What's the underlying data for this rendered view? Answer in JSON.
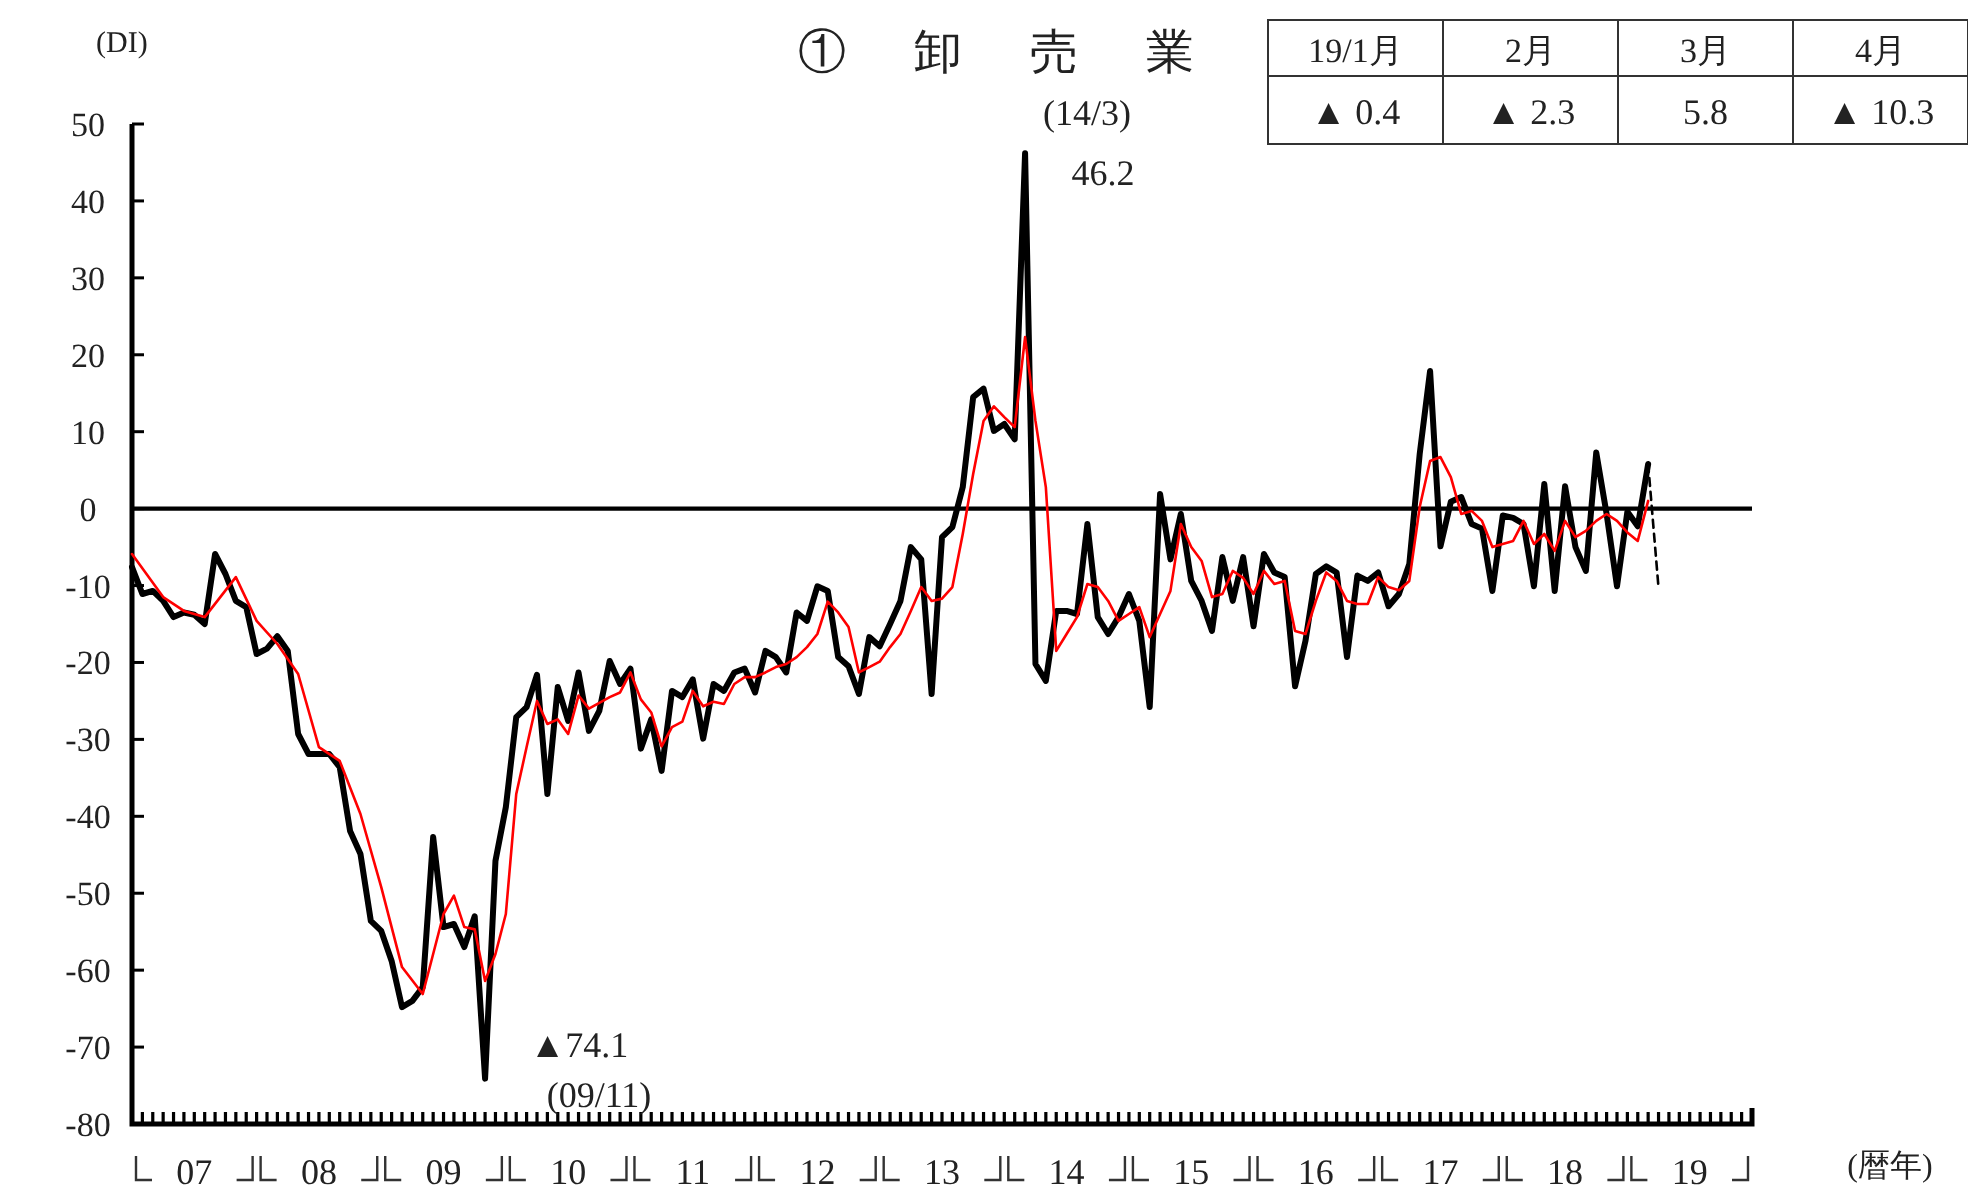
{
  "chart_data": [
    {
      "type": "line",
      "title": "① 卸 売 業",
      "ylabel": "(DI)",
      "xlabel": "(暦年)",
      "xlim": [
        "2007-01",
        "2020-01"
      ],
      "xticks": [
        {
          "value": "2007-07",
          "label": "07"
        },
        {
          "value": "2008-07",
          "label": "08"
        },
        {
          "value": "2009-07",
          "label": "09"
        },
        {
          "value": "2010-07",
          "label": "10"
        },
        {
          "value": "2011-07",
          "label": "11"
        },
        {
          "value": "2012-07",
          "label": "12"
        },
        {
          "value": "2013-07",
          "label": "13"
        },
        {
          "value": "2014-07",
          "label": "14"
        },
        {
          "value": "2015-07",
          "label": "15"
        },
        {
          "value": "2016-07",
          "label": "16"
        },
        {
          "value": "2017-07",
          "label": "17"
        },
        {
          "value": "2018-07",
          "label": "18"
        },
        {
          "value": "2019-07",
          "label": "19"
        }
      ],
      "ylim": [
        -80,
        50
      ],
      "yticks": [
        -80,
        -70,
        -60,
        -50,
        -40,
        -30,
        -20,
        -10,
        0,
        10,
        20,
        30,
        40,
        50
      ],
      "grid": false,
      "marker": "none",
      "ref_lines": [
        {
          "axis": "y",
          "value": 0,
          "color": "#000000"
        }
      ],
      "annotations": [
        {
          "text": "(14/3)\n46.2",
          "x": "2014-03",
          "y": 46.2
        },
        {
          "text": "▲74.1\n(09/11)",
          "x": "2009-11",
          "y": -74.1
        }
      ],
      "series": [
        {
          "color": "#000000",
          "line_style": "solid",
          "x": [
            "2007-01",
            "2007-02",
            "2007-03",
            "2007-04",
            "2007-05",
            "2007-06",
            "2007-07",
            "2007-08",
            "2007-09",
            "2007-10",
            "2007-11",
            "2007-12",
            "2008-01",
            "2008-02",
            "2008-03",
            "2008-04",
            "2008-05",
            "2008-06",
            "2008-07",
            "2008-08",
            "2008-09",
            "2008-10",
            "2008-11",
            "2008-12",
            "2009-01",
            "2009-02",
            "2009-03",
            "2009-04",
            "2009-05",
            "2009-06",
            "2009-07",
            "2009-08",
            "2009-09",
            "2009-10",
            "2009-11",
            "2009-12",
            "2010-01",
            "2010-02",
            "2010-03",
            "2010-04",
            "2010-05",
            "2010-06",
            "2010-07",
            "2010-08",
            "2010-09",
            "2010-10",
            "2010-11",
            "2010-12",
            "2011-01",
            "2011-02",
            "2011-03",
            "2011-04",
            "2011-05",
            "2011-06",
            "2011-07",
            "2011-08",
            "2011-09",
            "2011-10",
            "2011-11",
            "2011-12",
            "2012-01",
            "2012-02",
            "2012-03",
            "2012-04",
            "2012-05",
            "2012-06",
            "2012-07",
            "2012-08",
            "2012-09",
            "2012-10",
            "2012-11",
            "2012-12",
            "2013-01",
            "2013-02",
            "2013-03",
            "2013-04",
            "2013-05",
            "2013-06",
            "2013-07",
            "2013-08",
            "2013-09",
            "2013-10",
            "2013-11",
            "2013-12",
            "2014-01",
            "2014-02",
            "2014-03",
            "2014-04",
            "2014-05",
            "2014-06",
            "2014-07",
            "2014-08",
            "2014-09",
            "2014-10",
            "2014-11",
            "2014-12",
            "2015-01",
            "2015-02",
            "2015-03",
            "2015-04",
            "2015-05",
            "2015-06",
            "2015-07",
            "2015-08",
            "2015-09",
            "2015-10",
            "2015-11",
            "2015-12",
            "2016-01",
            "2016-02",
            "2016-03",
            "2016-04",
            "2016-05",
            "2016-06",
            "2016-07",
            "2016-08",
            "2016-09",
            "2016-10",
            "2016-11",
            "2016-12",
            "2017-01",
            "2017-02",
            "2017-03",
            "2017-04",
            "2017-05",
            "2017-06",
            "2017-07",
            "2017-08",
            "2017-09",
            "2017-10",
            "2017-11",
            "2017-12",
            "2018-01",
            "2018-02",
            "2018-03",
            "2018-04",
            "2018-05",
            "2018-06",
            "2018-07",
            "2018-08",
            "2018-09",
            "2018-10",
            "2018-11",
            "2018-12",
            "2019-01",
            "2019-02",
            "2019-03"
          ],
          "values": [
            -7.6,
            -11.1,
            -10.7,
            -12,
            -14.1,
            -13.5,
            -13.8,
            -15,
            -5.9,
            -8.5,
            -12,
            -12.8,
            -18.9,
            -18.2,
            -16.6,
            -18.5,
            -29.3,
            -31.9,
            -31.9,
            -31.9,
            -33.6,
            -41.9,
            -44.9,
            -53.6,
            -54.9,
            -58.8,
            -64.8,
            -64,
            -62.2,
            -42.7,
            -54.4,
            -54,
            -57,
            -53,
            -74.1,
            -45.8,
            -38.8,
            -27.1,
            -25.8,
            -21.6,
            -37.1,
            -23.2,
            -27.6,
            -21.3,
            -28.9,
            -26.3,
            -19.8,
            -22.8,
            -20.8,
            -31.2,
            -27.4,
            -34.1,
            -23.7,
            -24.5,
            -22.2,
            -29.9,
            -22.8,
            -23.7,
            -21.3,
            -20.8,
            -23.9,
            -18.5,
            -19.3,
            -21.3,
            -13.5,
            -14.6,
            -10.1,
            -10.7,
            -19.3,
            -20.5,
            -24.1,
            -16.7,
            -17.9,
            -15,
            -12,
            -5,
            -6.6,
            -24.1,
            -3.7,
            -2.4,
            2.8,
            14.5,
            15.6,
            10.1,
            11,
            9,
            46.2,
            -20.2,
            -22.4,
            -13.3,
            -13.3,
            -13.7,
            -2,
            -14.1,
            -16.3,
            -14.1,
            -11.1,
            -14.6,
            -25.8,
            1.9,
            -6.6,
            -0.7,
            -9.4,
            -12,
            -15.9,
            -6.3,
            -12,
            -6.3,
            -15.3,
            -5.9,
            -8.3,
            -8.9,
            -23.1,
            -17.2,
            -8.5,
            -7.5,
            -8.3,
            -19.3,
            -8.7,
            -9.4,
            -8.3,
            -12.7,
            -11.1,
            -7.2,
            7.1,
            17.9,
            -4.9,
            0.9,
            1.5,
            -2,
            -2.6,
            -10.7,
            -0.9,
            -1.2,
            -2,
            -10.1,
            3.2,
            -10.7,
            2.9,
            -5,
            -8.1,
            7.3,
            -0.7,
            -10.1,
            -0.4,
            -2.3,
            5.8
          ]
        },
        {
          "color": "#ff0000",
          "line_style": "solid",
          "x": [
            "2007-01",
            "2007-04",
            "2007-06",
            "2007-08",
            "2007-11",
            "2008-01",
            "2008-03",
            "2008-05",
            "2008-07",
            "2008-09",
            "2008-11",
            "2009-01",
            "2009-03",
            "2009-05",
            "2009-07",
            "2009-08",
            "2009-09",
            "2009-10",
            "2009-11",
            "2009-12",
            "2010-01",
            "2010-02",
            "2010-03",
            "2010-04",
            "2010-05",
            "2010-06",
            "2010-07",
            "2010-08",
            "2010-09",
            "2010-11",
            "2010-12",
            "2011-01",
            "2011-02",
            "2011-03",
            "2011-04",
            "2011-05",
            "2011-06",
            "2011-07",
            "2011-08",
            "2011-09",
            "2011-10",
            "2011-11",
            "2011-12",
            "2012-01",
            "2012-02",
            "2012-03",
            "2012-04",
            "2012-05",
            "2012-06",
            "2012-07",
            "2012-08",
            "2012-09",
            "2012-10",
            "2012-11",
            "2012-12",
            "2013-01",
            "2013-02",
            "2013-03",
            "2013-04",
            "2013-05",
            "2013-06",
            "2013-07",
            "2013-08",
            "2013-09",
            "2013-10",
            "2013-11",
            "2013-12",
            "2014-01",
            "2014-02",
            "2014-03",
            "2014-04",
            "2014-05",
            "2014-06",
            "2014-07",
            "2014-08",
            "2014-09",
            "2014-10",
            "2014-11",
            "2014-12",
            "2015-01",
            "2015-02",
            "2015-03",
            "2015-04",
            "2015-05",
            "2015-06",
            "2015-07",
            "2015-08",
            "2015-09",
            "2015-10",
            "2015-11",
            "2015-12",
            "2016-01",
            "2016-02",
            "2016-03",
            "2016-04",
            "2016-05",
            "2016-06",
            "2016-07",
            "2016-08",
            "2016-09",
            "2016-10",
            "2016-11",
            "2016-12",
            "2017-01",
            "2017-02",
            "2017-03",
            "2017-04",
            "2017-05",
            "2017-06",
            "2017-07",
            "2017-08",
            "2017-09",
            "2017-10",
            "2017-11",
            "2017-12",
            "2018-01",
            "2018-02",
            "2018-03",
            "2018-04",
            "2018-05",
            "2018-06",
            "2018-07",
            "2018-08",
            "2018-09",
            "2018-10",
            "2018-11",
            "2018-12",
            "2019-01",
            "2019-02",
            "2019-03"
          ],
          "values": [
            -5.9,
            -11.5,
            -13.3,
            -14.1,
            -8.9,
            -14.6,
            -17.6,
            -21.5,
            -31,
            -32.8,
            -39.7,
            -49.2,
            -59.6,
            -63.1,
            -52.7,
            -50.3,
            -54.4,
            -54.7,
            -61.4,
            -57.9,
            -52.7,
            -37.1,
            -31,
            -25,
            -28,
            -27.4,
            -29.3,
            -24.3,
            -26,
            -24.5,
            -23.9,
            -21.3,
            -24.8,
            -26.5,
            -30.9,
            -28.4,
            -27.7,
            -23.7,
            -25.7,
            -25.1,
            -25.4,
            -22.8,
            -21.9,
            -21.9,
            -21.3,
            -20.6,
            -20.2,
            -19.3,
            -18,
            -16.3,
            -12.1,
            -13.5,
            -15.4,
            -21.3,
            -20.6,
            -19.9,
            -18,
            -16.3,
            -13.3,
            -10.2,
            -12,
            -11.7,
            -10.2,
            -3.3,
            4.5,
            11.4,
            13.3,
            11.9,
            10.6,
            22.3,
            11.4,
            2.8,
            -18.5,
            -16.3,
            -14.1,
            -9.8,
            -10.2,
            -12,
            -14.6,
            -13.7,
            -12.8,
            -16.7,
            -13.7,
            -10.7,
            -2,
            -5,
            -6.8,
            -11.5,
            -11.1,
            -8.1,
            -9,
            -11.1,
            -8.1,
            -9.8,
            -9.4,
            -15.9,
            -16.3,
            -12,
            -8.3,
            -9.4,
            -12,
            -12.4,
            -12.4,
            -8.9,
            -10.2,
            -10.6,
            -9.4,
            0.2,
            6.2,
            6.7,
            4.1,
            -0.7,
            -0.3,
            -1.6,
            -5,
            -4.6,
            -4.2,
            -1.6,
            -4.6,
            -3.3,
            -5.5,
            -1.6,
            -3.7,
            -2.9,
            -1.6,
            -0.7,
            -1.6,
            -3.1,
            -4.2,
            1.0
          ]
        },
        {
          "color": "#000000",
          "line_style": "dashed",
          "x": [
            "2019-03",
            "2019-04"
          ],
          "values": [
            5.8,
            -10.3
          ]
        }
      ]
    },
    {
      "type": "other",
      "categories": [
        "19/1月",
        "2月",
        "3月",
        "4月"
      ],
      "value_labels": [
        "▲ 0.4",
        "▲ 2.3",
        "5.8",
        "▲ 10.3"
      ]
    }
  ]
}
